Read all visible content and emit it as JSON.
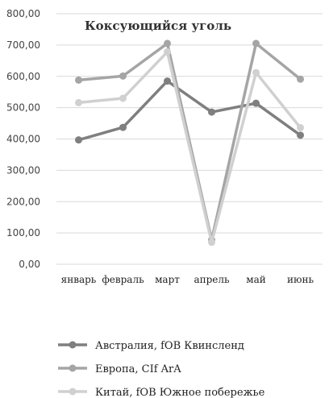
{
  "chart_data": {
    "type": "line",
    "title": "Коксующийся уголь",
    "xlabel": "",
    "ylabel": "",
    "categories": [
      "январь",
      "февраль",
      "март",
      "апрель",
      "май",
      "июнь"
    ],
    "ylim": [
      0,
      800
    ],
    "yticks": [
      "0,00",
      "100,00",
      "200,00",
      "300,00",
      "400,00",
      "500,00",
      "600,00",
      "700,00",
      "800,00"
    ],
    "grid": true,
    "legend_position": "bottom",
    "series": [
      {
        "name": "Австралия, fOB Квинсленд",
        "color": "#7f7f7f",
        "values": [
          397,
          437,
          585,
          486,
          514,
          412
        ]
      },
      {
        "name": "Европа, CIf ArA",
        "color": "#a5a5a5",
        "values": [
          588,
          601,
          705,
          78,
          705,
          591
        ]
      },
      {
        "name": "Китай, fOB Южное побережье",
        "color": "#d0d0d0",
        "values": [
          516,
          530,
          678,
          70,
          612,
          436
        ]
      }
    ]
  }
}
